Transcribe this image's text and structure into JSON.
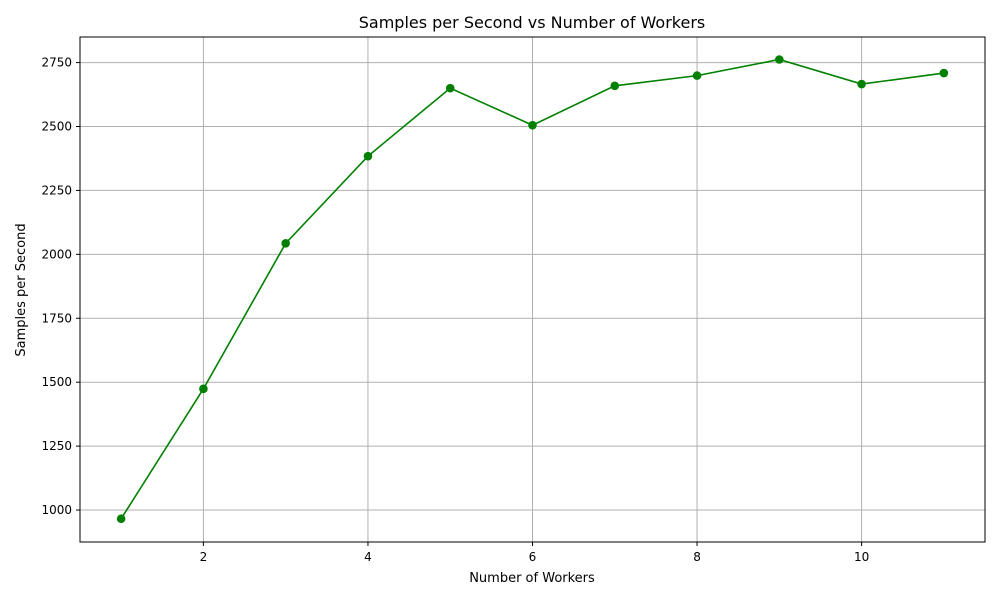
{
  "chart_data": {
    "type": "line",
    "title": "Samples per Second vs Number of Workers",
    "xlabel": "Number of Workers",
    "ylabel": "Samples per Second",
    "xlim": [
      0.5,
      11.5
    ],
    "ylim": [
      875,
      2850
    ],
    "xticks": [
      2,
      4,
      6,
      8,
      10
    ],
    "yticks": [
      1000,
      1250,
      1500,
      1750,
      2000,
      2250,
      2500,
      2750
    ],
    "grid": true,
    "series": [
      {
        "color": "#008000",
        "marker": "circle",
        "x": [
          1,
          2,
          3,
          4,
          5,
          6,
          7,
          8,
          9,
          10,
          11
        ],
        "y": [
          966,
          1474,
          2043,
          2384,
          2650,
          2505,
          2659,
          2699,
          2762,
          2666,
          2709
        ]
      }
    ]
  }
}
